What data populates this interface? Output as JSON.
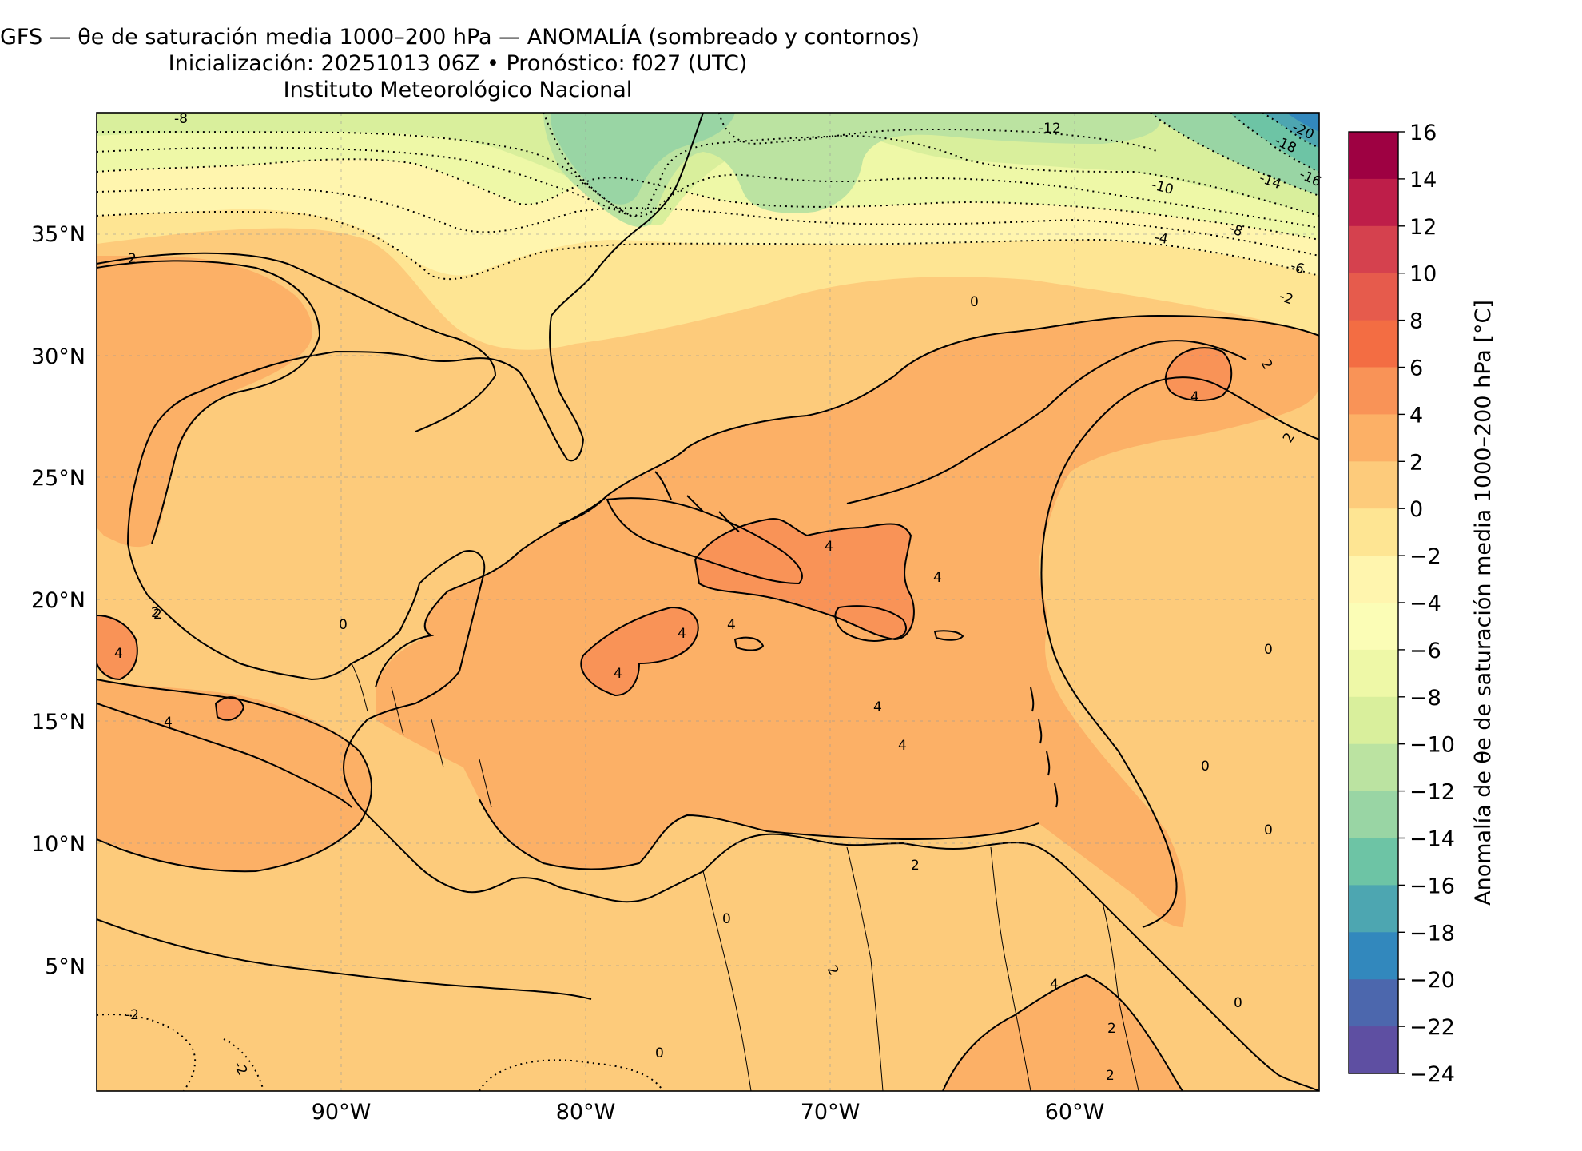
{
  "title": {
    "line1": "GFS — θe de saturación media 1000–200 hPa — ANOMALÍA (sombreado y contornos)",
    "line2": "Inicialización: 20251013 06Z   •   Pronóstico: f027 (UTC)",
    "line3": "Instituto Meteorológico Nacional"
  },
  "map": {
    "lon_labels": [
      "90°W",
      "80°W",
      "70°W",
      "60°W"
    ],
    "lat_labels": [
      "35°N",
      "30°N",
      "25°N",
      "20°N",
      "15°N",
      "10°N",
      "5°N"
    ],
    "contour_labels": [
      "-8",
      "-12",
      "-20",
      "-18",
      "-16",
      "-14",
      "-10",
      "-8",
      "-6",
      "-4",
      "-2",
      "0",
      "2",
      "2",
      "2",
      "4",
      "4",
      "4",
      "4",
      "4",
      "4",
      "4",
      "4",
      "4",
      "2",
      "0",
      "0",
      "0",
      "0",
      "2",
      "-2",
      "-2",
      "0",
      "2",
      "4",
      "2",
      "2",
      "4",
      "0",
      "2",
      "0"
    ]
  },
  "colorbar": {
    "label": "Anomalía de θe de saturación media 1000–200 hPa [°C]",
    "ticks": [
      "16",
      "14",
      "12",
      "10",
      "8",
      "6",
      "4",
      "2",
      "0",
      "−2",
      "−4",
      "−6",
      "−8",
      "−10",
      "−12",
      "−14",
      "−16",
      "−18",
      "−20",
      "−22",
      "−24"
    ],
    "colors": [
      "#9e0142",
      "#be1e49",
      "#d5414e",
      "#e65b4c",
      "#f36d43",
      "#f99357",
      "#fcb066",
      "#fdcb7b",
      "#fee593",
      "#fff5ae",
      "#fbfdb6",
      "#eef8a7",
      "#d9ef9c",
      "#bbe3a1",
      "#99d5a4",
      "#6dc4a5",
      "#4da6b1",
      "#3288bd",
      "#4c67ad",
      "#5e4fa2"
    ]
  },
  "colors": {
    "ocean_warm": "#fdcb7b",
    "warm_core": "#fcb066",
    "hot_core": "#f99357",
    "neutral": "#fee593",
    "cool_1": "#fff5ae",
    "cool_2": "#eef8a7",
    "cool_3": "#bbe3a1",
    "cool_4": "#6dc4a5",
    "cool_5": "#3288bd"
  }
}
